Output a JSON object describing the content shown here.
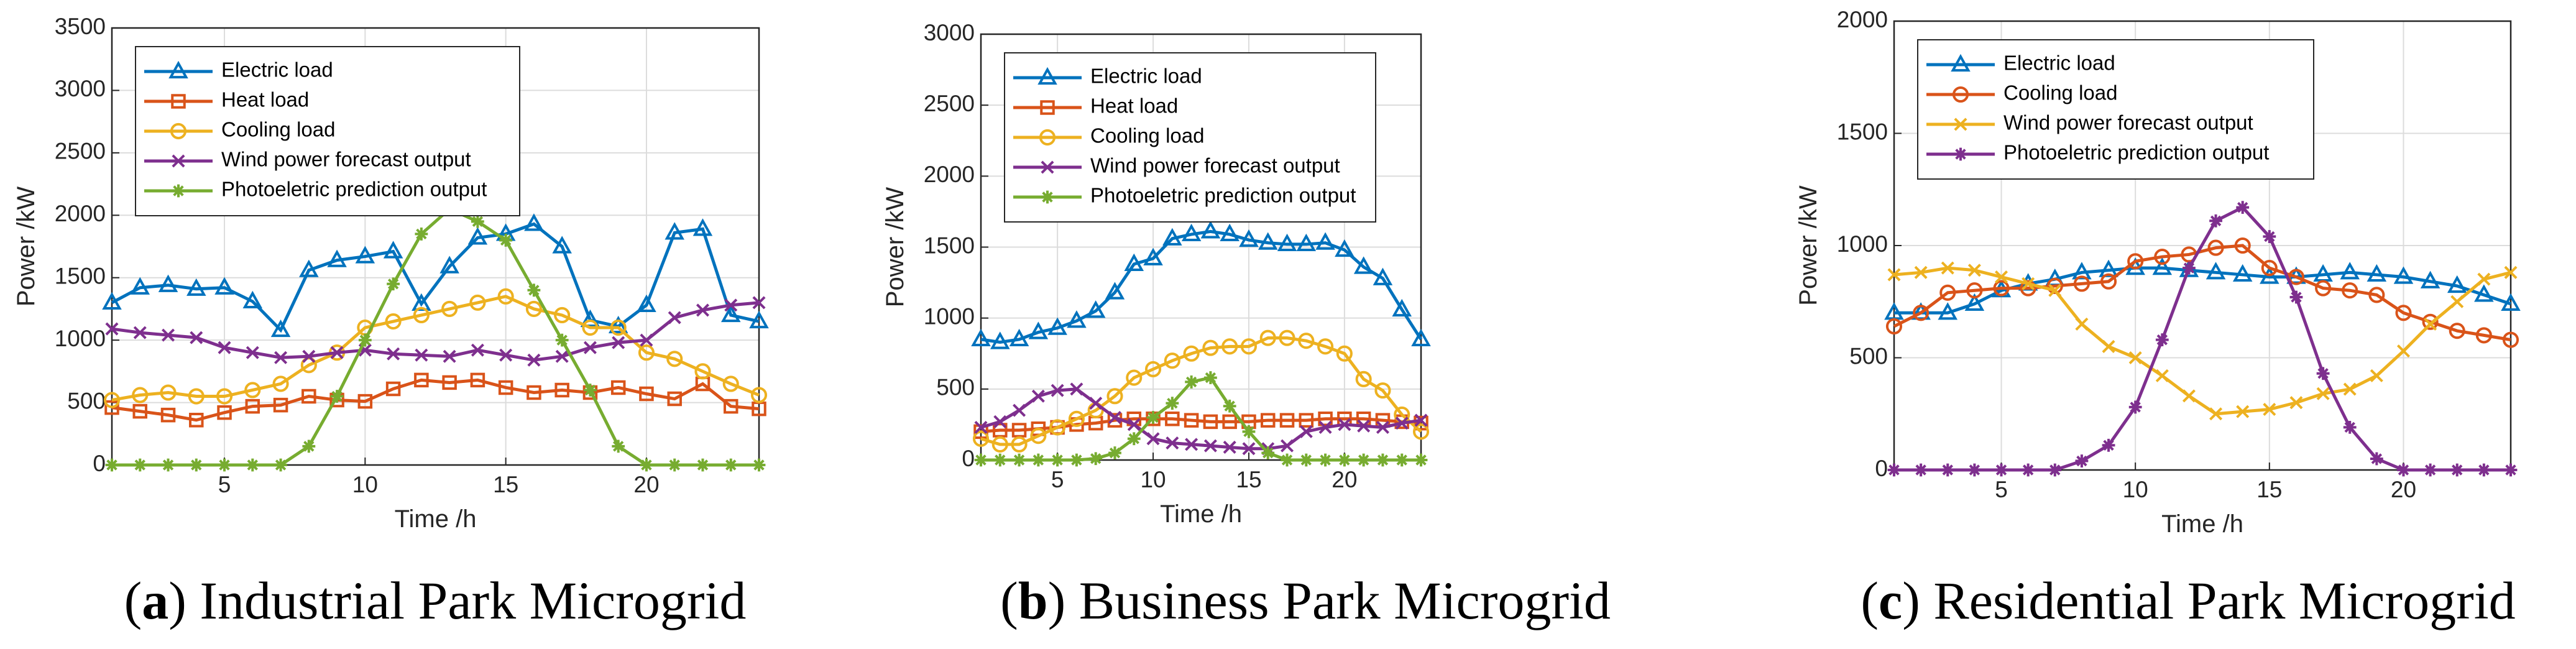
{
  "chart_data": [
    {
      "type": "line",
      "panel": "a",
      "title": "Industrial Park Microgrid",
      "xlabel": "Time /h",
      "ylabel": "Power /kW",
      "x": [
        1,
        2,
        3,
        4,
        5,
        6,
        7,
        8,
        9,
        10,
        11,
        12,
        13,
        14,
        15,
        16,
        17,
        18,
        19,
        20,
        21,
        22,
        23,
        24
      ],
      "xlim": [
        1,
        24
      ],
      "xticks": [
        5,
        10,
        15,
        20
      ],
      "ylim": [
        0,
        3500
      ],
      "yticks": [
        0,
        500,
        1000,
        1500,
        2000,
        2500,
        3000,
        3500
      ],
      "grid": true,
      "legend": "northwest",
      "series": [
        {
          "name": "Electric load",
          "color": "#0072BD",
          "marker": "triangle",
          "values": [
            1300,
            1420,
            1440,
            1410,
            1420,
            1310,
            1080,
            1560,
            1640,
            1670,
            1710,
            1290,
            1590,
            1820,
            1850,
            1930,
            1750,
            1160,
            1110,
            1280,
            1860,
            1890,
            1200,
            1150
          ]
        },
        {
          "name": "Heat load",
          "color": "#D95319",
          "marker": "square",
          "values": [
            460,
            430,
            400,
            360,
            420,
            470,
            480,
            550,
            520,
            510,
            610,
            680,
            660,
            680,
            620,
            580,
            600,
            580,
            620,
            570,
            530,
            650,
            470,
            450
          ]
        },
        {
          "name": "Cooling load",
          "color": "#EDB120",
          "marker": "circle",
          "values": [
            520,
            560,
            580,
            550,
            550,
            600,
            650,
            800,
            900,
            1100,
            1150,
            1200,
            1250,
            1300,
            1350,
            1250,
            1200,
            1100,
            1100,
            900,
            850,
            750,
            650,
            560
          ]
        },
        {
          "name": "Wind power forecast output",
          "color": "#7E2F8E",
          "marker": "x",
          "values": [
            1090,
            1060,
            1040,
            1020,
            940,
            900,
            860,
            870,
            900,
            920,
            890,
            880,
            870,
            920,
            880,
            840,
            870,
            940,
            980,
            1000,
            1180,
            1240,
            1280,
            1300
          ]
        },
        {
          "name": "Photoeletric prediction output",
          "color": "#77AC30",
          "marker": "asterisk",
          "values": [
            0,
            0,
            0,
            0,
            0,
            0,
            0,
            150,
            550,
            1000,
            1450,
            1850,
            2050,
            1950,
            1800,
            1400,
            1000,
            600,
            150,
            0,
            0,
            0,
            0,
            0
          ]
        }
      ]
    },
    {
      "type": "line",
      "panel": "b",
      "title": "Business Park Microgrid",
      "xlabel": "Time /h",
      "ylabel": "Power /kW",
      "x": [
        1,
        2,
        3,
        4,
        5,
        6,
        7,
        8,
        9,
        10,
        11,
        12,
        13,
        14,
        15,
        16,
        17,
        18,
        19,
        20,
        21,
        22,
        23,
        24
      ],
      "xlim": [
        1,
        24
      ],
      "xticks": [
        5,
        10,
        15,
        20
      ],
      "ylim": [
        0,
        3000
      ],
      "yticks": [
        0,
        500,
        1000,
        1500,
        2000,
        2500,
        3000
      ],
      "grid": true,
      "legend": "northwest",
      "series": [
        {
          "name": "Electric load",
          "color": "#0072BD",
          "marker": "triangle",
          "values": [
            850,
            830,
            850,
            900,
            930,
            980,
            1050,
            1180,
            1380,
            1420,
            1560,
            1590,
            1610,
            1590,
            1550,
            1530,
            1520,
            1520,
            1530,
            1480,
            1360,
            1280,
            1060,
            850
          ]
        },
        {
          "name": "Heat load",
          "color": "#D95319",
          "marker": "square",
          "values": [
            200,
            210,
            210,
            220,
            230,
            250,
            260,
            280,
            290,
            290,
            290,
            280,
            270,
            270,
            270,
            280,
            280,
            280,
            290,
            290,
            290,
            280,
            270,
            260
          ]
        },
        {
          "name": "Cooling load",
          "color": "#EDB120",
          "marker": "circle",
          "values": [
            150,
            110,
            110,
            170,
            230,
            290,
            350,
            450,
            580,
            640,
            700,
            750,
            790,
            800,
            800,
            860,
            860,
            840,
            800,
            750,
            570,
            490,
            320,
            200
          ]
        },
        {
          "name": "Wind power forecast output",
          "color": "#7E2F8E",
          "marker": "x",
          "values": [
            230,
            270,
            350,
            450,
            490,
            500,
            400,
            300,
            250,
            150,
            120,
            110,
            100,
            90,
            80,
            80,
            100,
            200,
            230,
            250,
            240,
            230,
            260,
            280
          ]
        },
        {
          "name": "Photoeletric prediction output",
          "color": "#77AC30",
          "marker": "asterisk",
          "values": [
            0,
            0,
            0,
            0,
            0,
            0,
            10,
            50,
            150,
            300,
            400,
            550,
            580,
            380,
            200,
            50,
            0,
            0,
            0,
            0,
            0,
            0,
            0,
            0
          ]
        }
      ]
    },
    {
      "type": "line",
      "panel": "c",
      "title": "Residential Park Microgrid",
      "xlabel": "Time /h",
      "ylabel": "Power /kW",
      "x": [
        1,
        2,
        3,
        4,
        5,
        6,
        7,
        8,
        9,
        10,
        11,
        12,
        13,
        14,
        15,
        16,
        17,
        18,
        19,
        20,
        21,
        22,
        23,
        24
      ],
      "xlim": [
        1,
        24
      ],
      "xticks": [
        5,
        10,
        15,
        20
      ],
      "ylim": [
        0,
        2000
      ],
      "yticks": [
        0,
        500,
        1000,
        1500,
        2000
      ],
      "grid": true,
      "legend": "northwest",
      "series": [
        {
          "name": "Electric load",
          "color": "#0072BD",
          "marker": "triangle",
          "values": [
            700,
            700,
            700,
            740,
            800,
            830,
            850,
            880,
            890,
            900,
            900,
            890,
            880,
            870,
            860,
            860,
            870,
            880,
            870,
            860,
            840,
            820,
            780,
            740
          ]
        },
        {
          "name": "Cooling load",
          "color": "#D95319",
          "marker": "circle",
          "values": [
            640,
            700,
            790,
            800,
            810,
            810,
            820,
            830,
            840,
            930,
            950,
            960,
            990,
            1000,
            900,
            860,
            810,
            800,
            780,
            700,
            660,
            620,
            600,
            580
          ]
        },
        {
          "name": "Wind power forecast output",
          "color": "#EDB120",
          "marker": "x",
          "values": [
            870,
            880,
            900,
            890,
            860,
            830,
            800,
            650,
            550,
            500,
            420,
            330,
            250,
            260,
            270,
            300,
            340,
            360,
            420,
            530,
            650,
            750,
            850,
            880
          ]
        },
        {
          "name": "Photoeletric prediction output",
          "color": "#7E2F8E",
          "marker": "asterisk",
          "values": [
            0,
            0,
            0,
            0,
            0,
            0,
            0,
            40,
            110,
            280,
            580,
            900,
            1110,
            1170,
            1040,
            770,
            430,
            190,
            50,
            0,
            0,
            0,
            0,
            0
          ]
        }
      ]
    }
  ]
}
